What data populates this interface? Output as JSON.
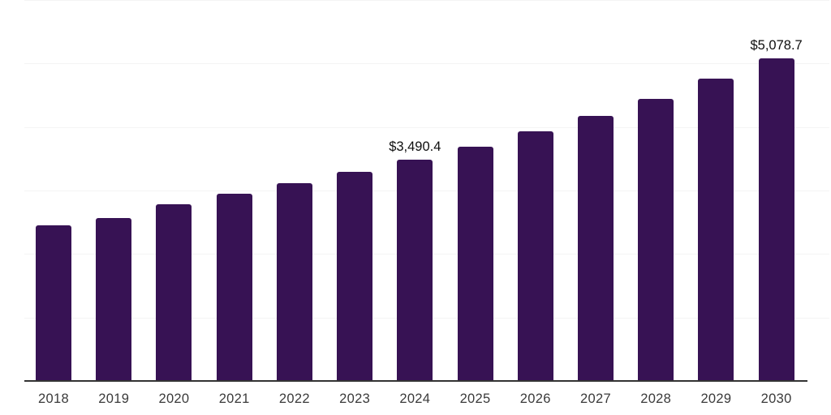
{
  "chart_data": {
    "type": "bar",
    "title": "",
    "xlabel": "",
    "ylabel": "",
    "categories": [
      "2018",
      "2019",
      "2020",
      "2021",
      "2022",
      "2023",
      "2024",
      "2025",
      "2026",
      "2027",
      "2028",
      "2029",
      "2030"
    ],
    "values": [
      2445,
      2565,
      2785,
      2950,
      3120,
      3290,
      3490.4,
      3695,
      3930,
      4180,
      4440,
      4760,
      5078.7
    ],
    "annotations": [
      {
        "category": "2024",
        "text": "$3,490.4"
      },
      {
        "category": "2030",
        "text": "$5,078.7"
      }
    ],
    "ylim": [
      0,
      6000
    ],
    "gridline_step": 1000,
    "grid": "horizontal",
    "legend_position": "none",
    "colors": {
      "bar": "#371254",
      "axis_line": "#333333",
      "gridline": "#f4f4f4",
      "tick_label": "#3a3a3a",
      "data_label": "#0e0e0e",
      "background": "#ffffff"
    }
  }
}
